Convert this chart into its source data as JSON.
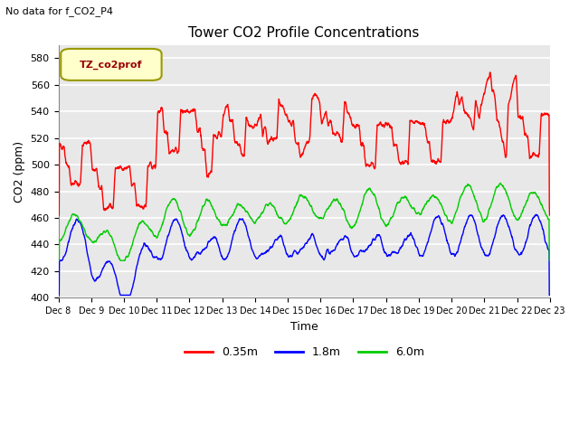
{
  "title": "Tower CO2 Profile Concentrations",
  "subtitle": "No data for f_CO2_P4",
  "xlabel": "Time",
  "ylabel": "CO2 (ppm)",
  "ylim": [
    400,
    590
  ],
  "yticks": [
    400,
    420,
    440,
    460,
    480,
    500,
    520,
    540,
    560,
    580
  ],
  "legend_label": "TZ_co2prof",
  "legend_label_color": "#990000",
  "series_labels": [
    "0.35m",
    "1.8m",
    "6.0m"
  ],
  "series_colors": [
    "#ff0000",
    "#0000ff",
    "#00cc00"
  ],
  "line_width": 1.0,
  "background_color": "#ffffff",
  "plot_bg_color": "#e8e8e8",
  "grid_color": "#ffffff",
  "xtick_labels": [
    "Dec 8",
    "Dec 9",
    "Dec 10",
    "Dec 11",
    "Dec 12",
    "Dec 13",
    "Dec 14",
    "Dec 15",
    "Dec 16",
    "Dec 17",
    "Dec 18",
    "Dec 19",
    "Dec 20",
    "Dec 21",
    "Dec 22",
    "Dec 23"
  ],
  "legend_box_color": "#ffffcc",
  "legend_box_edge": "#999900"
}
